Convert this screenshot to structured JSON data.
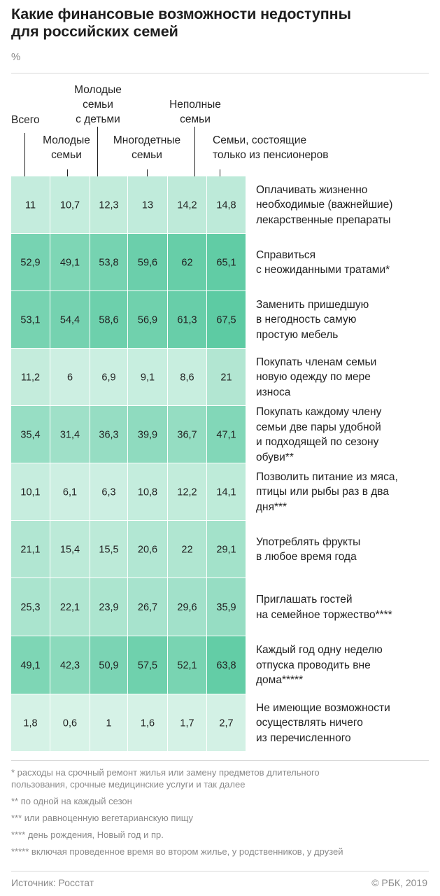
{
  "title": "Какие финансовые возможности недоступны\nдля российских семей",
  "unit": "%",
  "colors": {
    "low": "#d8f3e8",
    "high": "#58c9a0",
    "text": "#222222",
    "tick": "#222222"
  },
  "chart_data": {
    "type": "heatmap",
    "columns": [
      "Всего",
      "Молодые\nсемьи",
      "Молодые\nсемьи\nс детьми",
      "Многодетные\nсемьи",
      "Неполные\nсемьи",
      "Семьи, состоящие\nтолько из пенсионеров"
    ],
    "rows": [
      "Оплачивать жизненно\nнеобходимые (важнейшие)\nлекарственные препараты",
      "Справиться\nс неожиданными тратами*",
      "Заменить пришедшую\nв негодность самую\nпростую мебель",
      "Покупать членам семьи\nновую одежду по мере\nизноса",
      "Покупать каждому члену\nсемьи две пары удобной\nи подходящей по сезону\nобуви**",
      "Позволить питание из мяса,\nптицы или рыбы раз в два\nдня***",
      "Употреблять фрукты\nв любое время года",
      "Приглашать гостей\nна семейное торжество****",
      "Каждый год одну неделю\nотпуска проводить вне\nдома*****",
      "Не имеющие возможности\nосуществлять ничего\nиз перечисленного"
    ],
    "values": [
      [
        11,
        10.7,
        12.3,
        13,
        14.2,
        14.8
      ],
      [
        52.9,
        49.1,
        53.8,
        59.6,
        62,
        65.1
      ],
      [
        53.1,
        54.4,
        58.6,
        56.9,
        61.3,
        67.5
      ],
      [
        11.2,
        6,
        6.9,
        9.1,
        8.6,
        21
      ],
      [
        35.4,
        31.4,
        36.3,
        39.9,
        36.7,
        47.1
      ],
      [
        10.1,
        6.1,
        6.3,
        10.8,
        12.2,
        14.1
      ],
      [
        21.1,
        15.4,
        15.5,
        20.6,
        22,
        29.1
      ],
      [
        25.3,
        22.1,
        23.9,
        26.7,
        29.6,
        35.9
      ],
      [
        49.1,
        42.3,
        50.9,
        57.5,
        52.1,
        63.8
      ],
      [
        1.8,
        0.6,
        1,
        1.6,
        1.7,
        2.7
      ]
    ],
    "value_labels": [
      [
        "11",
        "10,7",
        "12,3",
        "13",
        "14,2",
        "14,8"
      ],
      [
        "52,9",
        "49,1",
        "53,8",
        "59,6",
        "62",
        "65,1"
      ],
      [
        "53,1",
        "54,4",
        "58,6",
        "56,9",
        "61,3",
        "67,5"
      ],
      [
        "11,2",
        "6",
        "6,9",
        "9,1",
        "8,6",
        "21"
      ],
      [
        "35,4",
        "31,4",
        "36,3",
        "39,9",
        "36,7",
        "47,1"
      ],
      [
        "10,1",
        "6,1",
        "6,3",
        "10,8",
        "12,2",
        "14,1"
      ],
      [
        "21,1",
        "15,4",
        "15,5",
        "20,6",
        "22",
        "29,1"
      ],
      [
        "25,3",
        "22,1",
        "23,9",
        "26,7",
        "29,6",
        "35,9"
      ],
      [
        "49,1",
        "42,3",
        "50,9",
        "57,5",
        "52,1",
        "63,8"
      ],
      [
        "1,8",
        "0,6",
        "1",
        "1,6",
        "1,7",
        "2,7"
      ]
    ],
    "value_range": [
      0,
      70
    ]
  },
  "notes": [
    "* расходы на срочный ремонт жилья или замену предметов длительного\nпользования, срочные медицинские услуги и так далее",
    "** по одной на каждый сезон",
    "*** или равноценную вегетарианскую пищу",
    "**** день рождения, Новый год и пр.",
    "***** включая проведенное время во втором жилье, у родственников, у друзей"
  ],
  "source": "Источник: Росстат",
  "copyright": "© РБК, 2019"
}
